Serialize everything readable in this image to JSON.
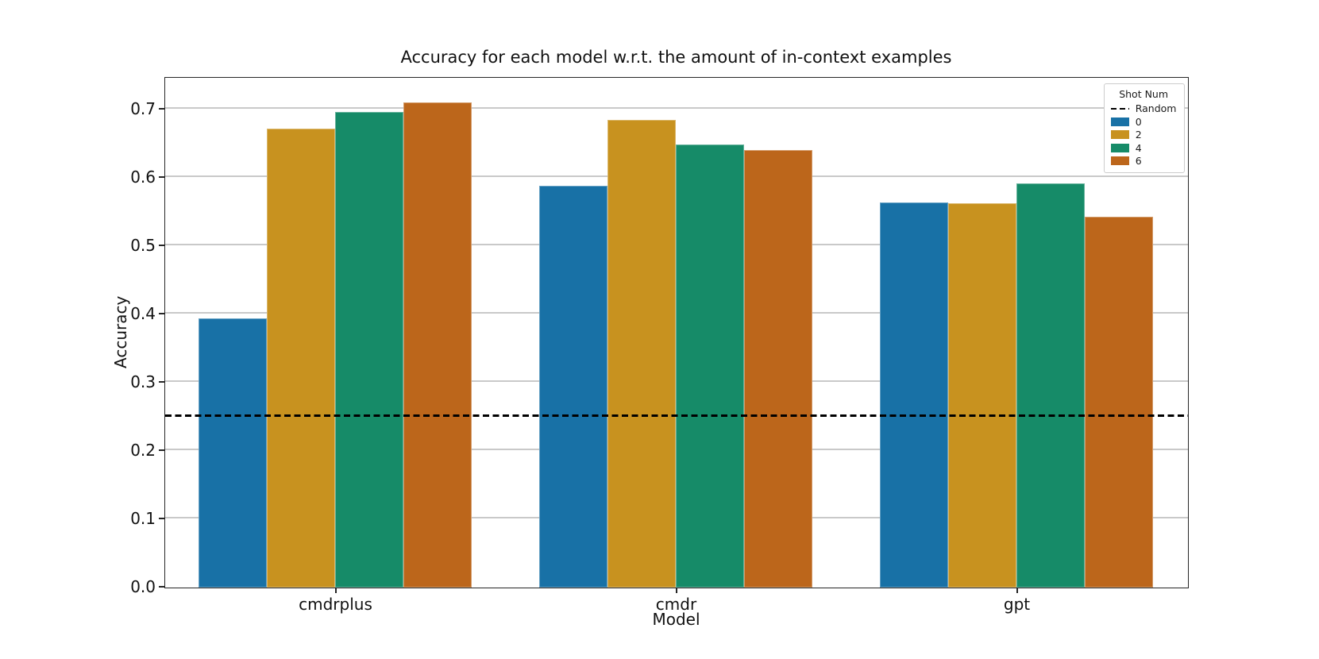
{
  "chart_data": {
    "type": "bar",
    "title": "Accuracy for each model w.r.t. the amount of in-context examples",
    "xlabel": "Model",
    "ylabel": "Accuracy",
    "categories": [
      "cmdrplus",
      "cmdr",
      "gpt"
    ],
    "series": [
      {
        "name": "0",
        "color": "#1871A6",
        "values": [
          0.393,
          0.587,
          0.563
        ]
      },
      {
        "name": "2",
        "color": "#C8921F",
        "values": [
          0.671,
          0.684,
          0.562
        ]
      },
      {
        "name": "4",
        "color": "#168B68",
        "values": [
          0.696,
          0.648,
          0.591
        ]
      },
      {
        "name": "6",
        "color": "#BC661B",
        "values": [
          0.709,
          0.64,
          0.542
        ]
      }
    ],
    "reference_line": {
      "label": "Random",
      "value": 0.25,
      "color": "#000000",
      "style": "dashed"
    },
    "yticks": [
      0.0,
      0.1,
      0.2,
      0.3,
      0.4,
      0.5,
      0.6,
      0.7
    ],
    "ylim": [
      0,
      0.745
    ],
    "group_width_fraction": 0.8,
    "grid": true,
    "legend": {
      "title": "Shot Num",
      "position": "upper right",
      "entries": [
        {
          "label": "Random",
          "swatch": "dashed-line",
          "color": "#000000"
        },
        {
          "label": "0",
          "swatch": "patch",
          "color": "#1871A6"
        },
        {
          "label": "2",
          "swatch": "patch",
          "color": "#C8921F"
        },
        {
          "label": "4",
          "swatch": "patch",
          "color": "#168B68"
        },
        {
          "label": "6",
          "swatch": "patch",
          "color": "#BC661B"
        }
      ]
    }
  }
}
